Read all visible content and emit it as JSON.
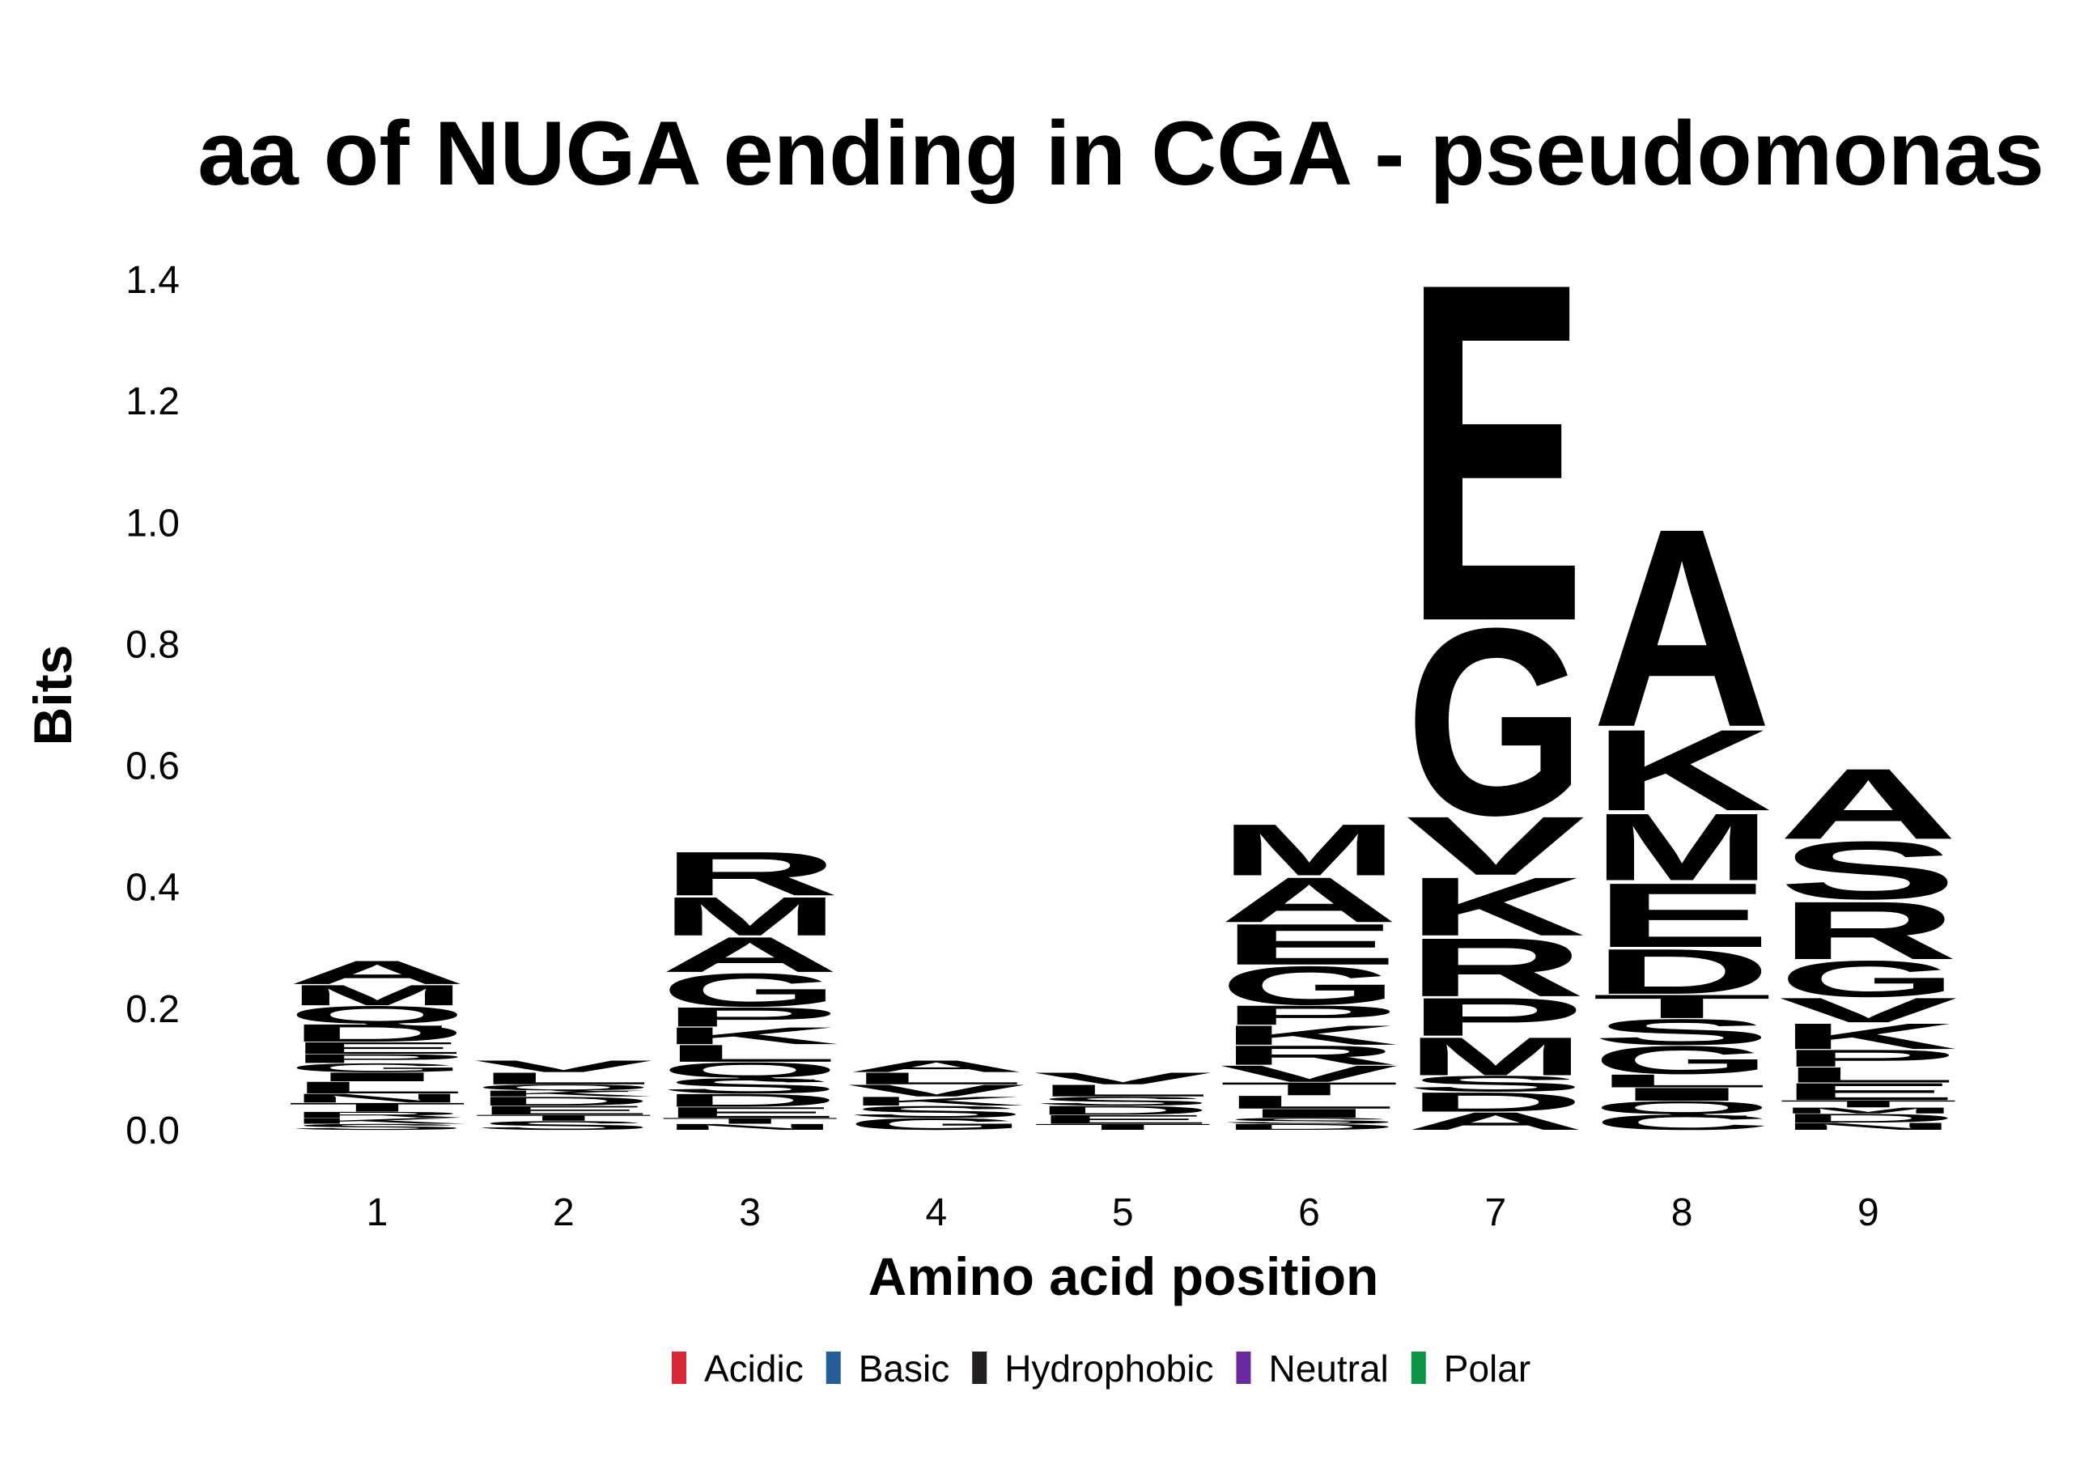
{
  "chart_data": {
    "type": "logo",
    "title": "aa of NUGA ending in CGA - pseudomonas",
    "xlabel": "Amino acid position",
    "ylabel": "Bits",
    "x": [
      1,
      2,
      3,
      4,
      5,
      6,
      7,
      8,
      9
    ],
    "ylim": [
      0,
      1.45
    ],
    "yticks": [
      {
        "value": 0,
        "label": "0.0"
      },
      0.2,
      0.4,
      0.6,
      0.8,
      {
        "value": 1,
        "label": "1.0"
      },
      1.2,
      1.4
    ],
    "groups": [
      {
        "name": "Acidic",
        "color": "#d62839"
      },
      {
        "name": "Basic",
        "color": "#255c99"
      },
      {
        "name": "Hydrophobic",
        "color": "#221f20"
      },
      {
        "name": "Neutral",
        "color": "#6a2aa0"
      },
      {
        "name": "Polar",
        "color": "#0c9447"
      }
    ],
    "stacks": [
      [
        {
          "letter": "S",
          "group": "Polar",
          "value": 0.01
        },
        {
          "letter": "K",
          "group": "Basic",
          "value": 0.01
        },
        {
          "letter": "R",
          "group": "Basic",
          "value": 0.01
        },
        {
          "letter": "T",
          "group": "Polar",
          "value": 0.015
        },
        {
          "letter": "N",
          "group": "Neutral",
          "value": 0.015
        },
        {
          "letter": "L",
          "group": "Hydrophobic",
          "value": 0.02
        },
        {
          "letter": "I",
          "group": "Hydrophobic",
          "value": 0.015
        },
        {
          "letter": "G",
          "group": "Polar",
          "value": 0.015
        },
        {
          "letter": "P",
          "group": "Hydrophobic",
          "value": 0.015
        },
        {
          "letter": "E",
          "group": "Acidic",
          "value": 0.02
        },
        {
          "letter": "D",
          "group": "Acidic",
          "value": 0.03
        },
        {
          "letter": "Q",
          "group": "Neutral",
          "value": 0.03
        },
        {
          "letter": "M",
          "group": "Hydrophobic",
          "value": 0.035
        },
        {
          "letter": "A",
          "group": "Hydrophobic",
          "value": 0.04
        }
      ],
      [
        {
          "letter": "S",
          "group": "Polar",
          "value": 0.015
        },
        {
          "letter": "T",
          "group": "Polar",
          "value": 0.01
        },
        {
          "letter": "E",
          "group": "Acidic",
          "value": 0.015
        },
        {
          "letter": "D",
          "group": "Acidic",
          "value": 0.015
        },
        {
          "letter": "K",
          "group": "Basic",
          "value": 0.01
        },
        {
          "letter": "Q",
          "group": "Neutral",
          "value": 0.01
        },
        {
          "letter": "L",
          "group": "Hydrophobic",
          "value": 0.02
        },
        {
          "letter": "V",
          "group": "Hydrophobic",
          "value": 0.02
        }
      ],
      [
        {
          "letter": "N",
          "group": "Neutral",
          "value": 0.01
        },
        {
          "letter": "T",
          "group": "Polar",
          "value": 0.01
        },
        {
          "letter": "E",
          "group": "Acidic",
          "value": 0.018
        },
        {
          "letter": "D",
          "group": "Acidic",
          "value": 0.022
        },
        {
          "letter": "S",
          "group": "Polar",
          "value": 0.026
        },
        {
          "letter": "Q",
          "group": "Neutral",
          "value": 0.026
        },
        {
          "letter": "L",
          "group": "Hydrophobic",
          "value": 0.029
        },
        {
          "letter": "K",
          "group": "Basic",
          "value": 0.029
        },
        {
          "letter": "P",
          "group": "Hydrophobic",
          "value": 0.033
        },
        {
          "letter": "G",
          "group": "Polar",
          "value": 0.057
        },
        {
          "letter": "A",
          "group": "Hydrophobic",
          "value": 0.06
        },
        {
          "letter": "M",
          "group": "Hydrophobic",
          "value": 0.066
        },
        {
          "letter": "R",
          "group": "Basic",
          "value": 0.075
        }
      ],
      [
        {
          "letter": "G",
          "group": "Polar",
          "value": 0.02
        },
        {
          "letter": "S",
          "group": "Polar",
          "value": 0.02
        },
        {
          "letter": "K",
          "group": "Basic",
          "value": 0.015
        },
        {
          "letter": "V",
          "group": "Hydrophobic",
          "value": 0.02
        },
        {
          "letter": "L",
          "group": "Hydrophobic",
          "value": 0.02
        },
        {
          "letter": "A",
          "group": "Hydrophobic",
          "value": 0.02
        }
      ],
      [
        {
          "letter": "T",
          "group": "Polar",
          "value": 0.01
        },
        {
          "letter": "E",
          "group": "Acidic",
          "value": 0.015
        },
        {
          "letter": "D",
          "group": "Acidic",
          "value": 0.015
        },
        {
          "letter": "S",
          "group": "Polar",
          "value": 0.015
        },
        {
          "letter": "L",
          "group": "Hydrophobic",
          "value": 0.02
        },
        {
          "letter": "V",
          "group": "Hydrophobic",
          "value": 0.02
        }
      ],
      [
        {
          "letter": "D",
          "group": "Acidic",
          "value": 0.01
        },
        {
          "letter": "S",
          "group": "Polar",
          "value": 0.01
        },
        {
          "letter": "I",
          "group": "Hydrophobic",
          "value": 0.015
        },
        {
          "letter": "L",
          "group": "Hydrophobic",
          "value": 0.022
        },
        {
          "letter": "T",
          "group": "Polar",
          "value": 0.022
        },
        {
          "letter": "V",
          "group": "Hydrophobic",
          "value": 0.028
        },
        {
          "letter": "R",
          "group": "Basic",
          "value": 0.033
        },
        {
          "letter": "K",
          "group": "Basic",
          "value": 0.033
        },
        {
          "letter": "P",
          "group": "Hydrophobic",
          "value": 0.033
        },
        {
          "letter": "G",
          "group": "Polar",
          "value": 0.066
        },
        {
          "letter": "E",
          "group": "Acidic",
          "value": 0.07
        },
        {
          "letter": "A",
          "group": "Hydrophobic",
          "value": 0.077
        },
        {
          "letter": "M",
          "group": "Hydrophobic",
          "value": 0.088
        }
      ],
      [
        {
          "letter": "A",
          "group": "Hydrophobic",
          "value": 0.03
        },
        {
          "letter": "D",
          "group": "Acidic",
          "value": 0.033
        },
        {
          "letter": "S",
          "group": "Polar",
          "value": 0.027
        },
        {
          "letter": "M",
          "group": "Hydrophobic",
          "value": 0.065
        },
        {
          "letter": "P",
          "group": "Hydrophobic",
          "value": 0.065
        },
        {
          "letter": "R",
          "group": "Basic",
          "value": 0.1
        },
        {
          "letter": "K",
          "group": "Basic",
          "value": 0.1
        },
        {
          "letter": "V",
          "group": "Hydrophobic",
          "value": 0.1
        },
        {
          "letter": "G",
          "group": "Polar",
          "value": 0.32
        },
        {
          "letter": "E",
          "group": "Acidic",
          "value": 0.58
        }
      ],
      [
        {
          "letter": "C",
          "group": "Polar",
          "value": 0.026
        },
        {
          "letter": "Q",
          "group": "Neutral",
          "value": 0.022
        },
        {
          "letter": "I",
          "group": "Hydrophobic",
          "value": 0.022
        },
        {
          "letter": "L",
          "group": "Hydrophobic",
          "value": 0.022
        },
        {
          "letter": "G",
          "group": "Polar",
          "value": 0.048
        },
        {
          "letter": "S",
          "group": "Polar",
          "value": 0.044
        },
        {
          "letter": "T",
          "group": "Polar",
          "value": 0.04
        },
        {
          "letter": "D",
          "group": "Acidic",
          "value": 0.077
        },
        {
          "letter": "E",
          "group": "Acidic",
          "value": 0.11
        },
        {
          "letter": "M",
          "group": "Hydrophobic",
          "value": 0.115
        },
        {
          "letter": "K",
          "group": "Basic",
          "value": 0.139
        },
        {
          "letter": "A",
          "group": "Hydrophobic",
          "value": 0.34
        }
      ],
      [
        {
          "letter": "N",
          "group": "Neutral",
          "value": 0.012
        },
        {
          "letter": "D",
          "group": "Acidic",
          "value": 0.015
        },
        {
          "letter": "M",
          "group": "Hydrophobic",
          "value": 0.01
        },
        {
          "letter": "T",
          "group": "Polar",
          "value": 0.012
        },
        {
          "letter": "E",
          "group": "Acidic",
          "value": 0.029
        },
        {
          "letter": "L",
          "group": "Hydrophobic",
          "value": 0.026
        },
        {
          "letter": "P",
          "group": "Hydrophobic",
          "value": 0.029
        },
        {
          "letter": "K",
          "group": "Basic",
          "value": 0.044
        },
        {
          "letter": "V",
          "group": "Hydrophobic",
          "value": 0.042
        },
        {
          "letter": "G",
          "group": "Polar",
          "value": 0.062
        },
        {
          "letter": "R",
          "group": "Basic",
          "value": 0.099
        },
        {
          "letter": "S",
          "group": "Polar",
          "value": 0.099
        },
        {
          "letter": "A",
          "group": "Hydrophobic",
          "value": 0.121
        }
      ]
    ]
  }
}
